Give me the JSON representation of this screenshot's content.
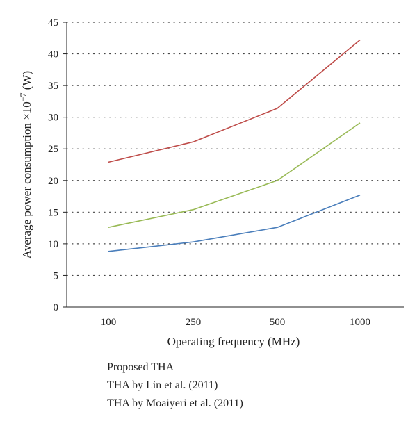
{
  "chart_data": {
    "type": "line",
    "title": "",
    "xlabel": "Operating frequency (MHz)",
    "ylabel": "Average power consumption ×10",
    "ylabel_exp": "−7",
    "ylabel_unit": " (W)",
    "categories": [
      "100",
      "250",
      "500",
      "1000"
    ],
    "ylim": [
      0,
      45
    ],
    "yticks": [
      0,
      5,
      10,
      15,
      20,
      25,
      30,
      35,
      40,
      45
    ],
    "grid": "horizontal dotted",
    "legend_position": "bottom",
    "series": [
      {
        "name": "Proposed THA",
        "color": "#4a7ebb",
        "values": [
          8.8,
          10.3,
          12.6,
          17.7
        ]
      },
      {
        "name": "THA by Lin et al. (2011)",
        "color": "#be4b48",
        "values": [
          22.9,
          26.1,
          31.4,
          42.2
        ]
      },
      {
        "name": "THA by Moaiyeri et al. (2011)",
        "color": "#98b954",
        "values": [
          12.6,
          15.4,
          20.0,
          29.1
        ]
      }
    ]
  }
}
